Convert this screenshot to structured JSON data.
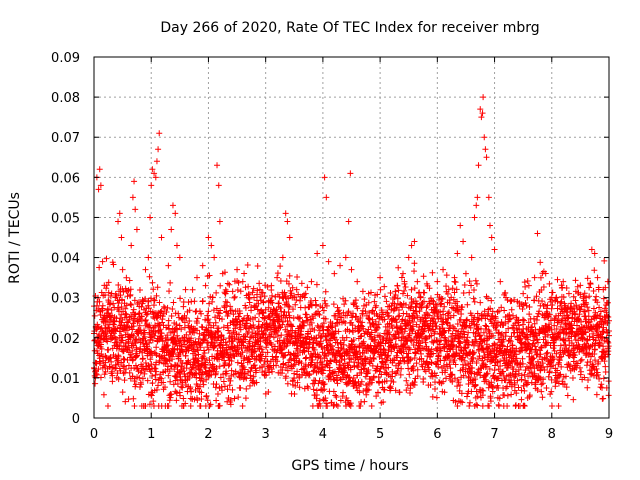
{
  "chart_data": {
    "type": "scatter",
    "title": "Day 266 of 2020, Rate Of TEC Index for receiver mbrg",
    "xlabel": "GPS time / hours",
    "ylabel": "ROTI / TECUs",
    "xlim": [
      0,
      9
    ],
    "ylim": [
      0,
      0.09
    ],
    "xticks": [
      "0",
      "1",
      "2",
      "3",
      "4",
      "5",
      "6",
      "7",
      "8",
      "9"
    ],
    "yticks": [
      "0",
      "0.01",
      "0.02",
      "0.03",
      "0.04",
      "0.05",
      "0.06",
      "0.07",
      "0.08",
      "0.09"
    ],
    "grid": true,
    "marker": "+",
    "series_color": "#ff0000",
    "series": [
      {
        "name": "ROTI",
        "points": [
          [
            0.05,
            0.06
          ],
          [
            0.08,
            0.057
          ],
          [
            0.1,
            0.062
          ],
          [
            0.12,
            0.058
          ],
          [
            0.15,
            0.039
          ],
          [
            0.2,
            0.021
          ],
          [
            0.25,
            0.017
          ],
          [
            0.3,
            0.014
          ],
          [
            0.35,
            0.022
          ],
          [
            0.4,
            0.018
          ],
          [
            0.42,
            0.049
          ],
          [
            0.45,
            0.051
          ],
          [
            0.48,
            0.045
          ],
          [
            0.5,
            0.037
          ],
          [
            0.55,
            0.026
          ],
          [
            0.6,
            0.019
          ],
          [
            0.65,
            0.043
          ],
          [
            0.68,
            0.055
          ],
          [
            0.7,
            0.059
          ],
          [
            0.72,
            0.052
          ],
          [
            0.75,
            0.047
          ],
          [
            0.8,
            0.023
          ],
          [
            0.85,
            0.029
          ],
          [
            0.9,
            0.037
          ],
          [
            0.95,
            0.04
          ],
          [
            0.98,
            0.05
          ],
          [
            1.0,
            0.058
          ],
          [
            1.02,
            0.062
          ],
          [
            1.05,
            0.061
          ],
          [
            1.08,
            0.06
          ],
          [
            1.1,
            0.064
          ],
          [
            1.12,
            0.067
          ],
          [
            1.14,
            0.071
          ],
          [
            1.18,
            0.045
          ],
          [
            1.22,
            0.026
          ],
          [
            1.3,
            0.038
          ],
          [
            1.35,
            0.047
          ],
          [
            1.38,
            0.053
          ],
          [
            1.42,
            0.051
          ],
          [
            1.45,
            0.043
          ],
          [
            1.5,
            0.04
          ],
          [
            1.55,
            0.025
          ],
          [
            1.6,
            0.032
          ],
          [
            1.7,
            0.029
          ],
          [
            1.8,
            0.035
          ],
          [
            1.9,
            0.038
          ],
          [
            1.95,
            0.033
          ],
          [
            2.0,
            0.045
          ],
          [
            2.05,
            0.043
          ],
          [
            2.1,
            0.04
          ],
          [
            2.15,
            0.063
          ],
          [
            2.18,
            0.058
          ],
          [
            2.2,
            0.049
          ],
          [
            2.25,
            0.036
          ],
          [
            2.3,
            0.031
          ],
          [
            2.35,
            0.005
          ],
          [
            2.38,
            0.004
          ],
          [
            2.42,
            0.007
          ],
          [
            2.5,
            0.037
          ],
          [
            2.6,
            0.034
          ],
          [
            2.7,
            0.03
          ],
          [
            2.8,
            0.028
          ],
          [
            2.9,
            0.032
          ],
          [
            3.0,
            0.027
          ],
          [
            3.1,
            0.033
          ],
          [
            3.2,
            0.035
          ],
          [
            3.3,
            0.04
          ],
          [
            3.35,
            0.051
          ],
          [
            3.38,
            0.049
          ],
          [
            3.42,
            0.045
          ],
          [
            3.5,
            0.03
          ],
          [
            3.6,
            0.025
          ],
          [
            3.7,
            0.031
          ],
          [
            3.8,
            0.034
          ],
          [
            3.9,
            0.041
          ],
          [
            4.0,
            0.043
          ],
          [
            4.03,
            0.06
          ],
          [
            4.06,
            0.055
          ],
          [
            4.1,
            0.039
          ],
          [
            4.2,
            0.036
          ],
          [
            4.3,
            0.038
          ],
          [
            4.4,
            0.04
          ],
          [
            4.45,
            0.049
          ],
          [
            4.48,
            0.061
          ],
          [
            4.5,
            0.037
          ],
          [
            4.6,
            0.034
          ],
          [
            4.7,
            0.026
          ],
          [
            4.8,
            0.031
          ],
          [
            4.9,
            0.029
          ],
          [
            5.0,
            0.035
          ],
          [
            5.1,
            0.021
          ],
          [
            5.2,
            0.028
          ],
          [
            5.3,
            0.033
          ],
          [
            5.4,
            0.036
          ],
          [
            5.5,
            0.04
          ],
          [
            5.55,
            0.043
          ],
          [
            5.6,
            0.044
          ],
          [
            5.7,
            0.03
          ],
          [
            5.8,
            0.025
          ],
          [
            5.9,
            0.027
          ],
          [
            6.0,
            0.034
          ],
          [
            6.1,
            0.037
          ],
          [
            6.2,
            0.032
          ],
          [
            6.3,
            0.035
          ],
          [
            6.35,
            0.041
          ],
          [
            6.4,
            0.048
          ],
          [
            6.45,
            0.044
          ],
          [
            6.5,
            0.036
          ],
          [
            6.6,
            0.04
          ],
          [
            6.65,
            0.05
          ],
          [
            6.68,
            0.053
          ],
          [
            6.7,
            0.055
          ],
          [
            6.72,
            0.063
          ],
          [
            6.75,
            0.077
          ],
          [
            6.77,
            0.075
          ],
          [
            6.79,
            0.076
          ],
          [
            6.8,
            0.08
          ],
          [
            6.82,
            0.07
          ],
          [
            6.84,
            0.067
          ],
          [
            6.86,
            0.065
          ],
          [
            6.9,
            0.055
          ],
          [
            6.92,
            0.048
          ],
          [
            6.95,
            0.045
          ],
          [
            7.0,
            0.042
          ],
          [
            7.1,
            0.034
          ],
          [
            7.2,
            0.03
          ],
          [
            7.3,
            0.027
          ],
          [
            7.4,
            0.029
          ],
          [
            7.5,
            0.031
          ],
          [
            7.6,
            0.033
          ],
          [
            7.7,
            0.035
          ],
          [
            7.75,
            0.046
          ],
          [
            7.8,
            0.028
          ],
          [
            7.9,
            0.026
          ],
          [
            8.0,
            0.03
          ],
          [
            8.1,
            0.029
          ],
          [
            8.2,
            0.034
          ],
          [
            8.3,
            0.031
          ],
          [
            8.4,
            0.026
          ],
          [
            8.5,
            0.027
          ],
          [
            8.6,
            0.03
          ],
          [
            8.7,
            0.042
          ],
          [
            8.75,
            0.041
          ],
          [
            8.8,
            0.035
          ],
          [
            8.9,
            0.032
          ],
          [
            8.98,
            0.034
          ]
        ]
      }
    ]
  }
}
